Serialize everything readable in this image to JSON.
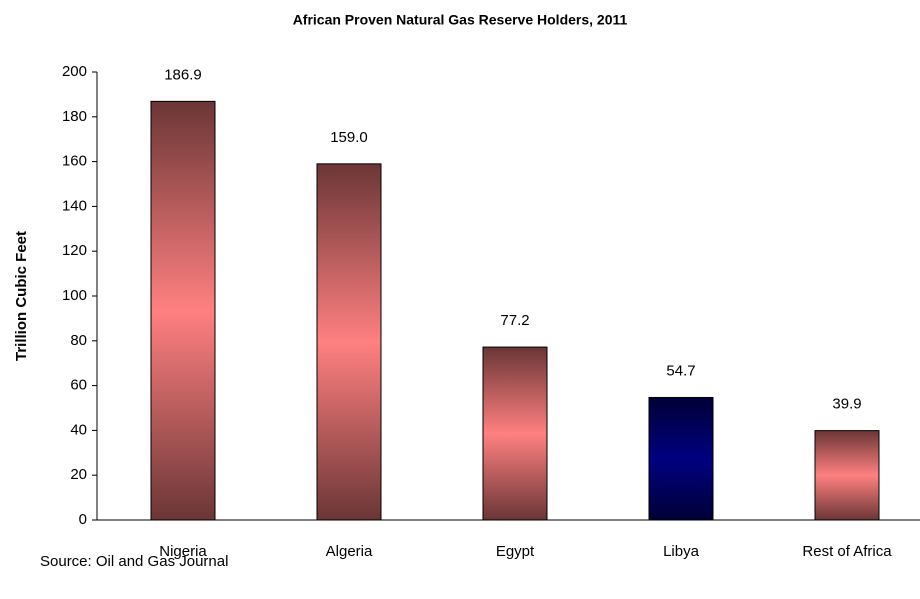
{
  "chart_data": {
    "type": "bar",
    "title": "African Proven Natural Gas Reserve Holders, 2011",
    "y_label": "Trillion Cubic Feet",
    "source": "Source: Oil and Gas Journal",
    "categories": [
      "Nigeria",
      "Algeria",
      "Egypt",
      "Libya",
      "Rest of Africa"
    ],
    "values": [
      186.9,
      159.0,
      77.2,
      54.7,
      39.9
    ],
    "value_labels": [
      "186.9",
      "159.0",
      "77.2",
      "54.7",
      "39.9"
    ],
    "colors": [
      "#ff8080",
      "#ff8080",
      "#ff8080",
      "#000080",
      "#ff8080"
    ],
    "ylim": [
      0,
      200
    ],
    "yticks": [
      0,
      20,
      40,
      60,
      80,
      100,
      120,
      140,
      160,
      180,
      200
    ],
    "grid": false
  }
}
